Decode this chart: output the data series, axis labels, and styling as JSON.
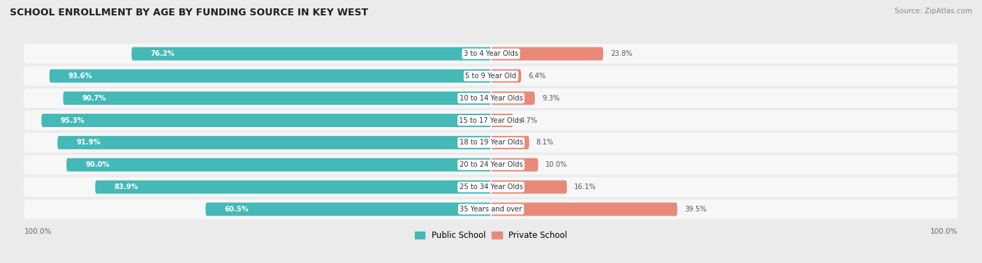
{
  "title": "SCHOOL ENROLLMENT BY AGE BY FUNDING SOURCE IN KEY WEST",
  "source": "Source: ZipAtlas.com",
  "categories": [
    "3 to 4 Year Olds",
    "5 to 9 Year Old",
    "10 to 14 Year Olds",
    "15 to 17 Year Olds",
    "18 to 19 Year Olds",
    "20 to 24 Year Olds",
    "25 to 34 Year Olds",
    "35 Years and over"
  ],
  "public_values": [
    76.2,
    93.6,
    90.7,
    95.3,
    91.9,
    90.0,
    83.9,
    60.5
  ],
  "private_values": [
    23.8,
    6.4,
    9.3,
    4.7,
    8.1,
    10.0,
    16.1,
    39.5
  ],
  "public_color": "#45b8b8",
  "private_color": "#e8897a",
  "background_color": "#ebebeb",
  "row_bg_color": "#f7f7f7",
  "label_bg_color": "#ffffff",
  "public_label": "Public School",
  "private_label": "Private School",
  "left_axis_label": "100.0%",
  "right_axis_label": "100.0%",
  "title_fontsize": 10,
  "bar_height": 0.6
}
